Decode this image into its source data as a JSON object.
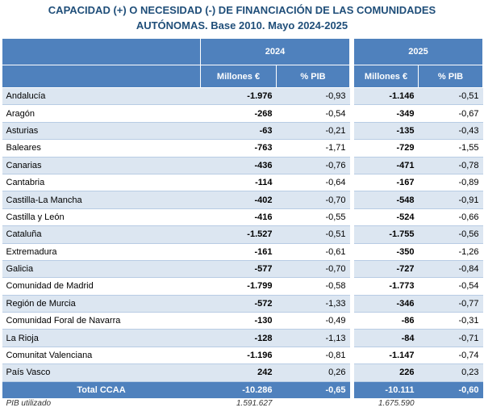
{
  "header": {
    "title_line1": "CAPACIDAD (+) O NECESIDAD (-) DE FINANCIACIÓN DE LAS COMUNIDADES",
    "title_line2": "AUTÓNOMAS. Base 2010. Mayo 2024-2025"
  },
  "table": {
    "years": [
      "2024",
      "2025"
    ],
    "columns": [
      "Millones €",
      "% PIB",
      "Millones €",
      "% PIB"
    ],
    "rows": [
      [
        "Andalucía",
        "-1.976",
        "-0,93",
        "-1.146",
        "-0,51"
      ],
      [
        "Aragón",
        "-268",
        "-0,54",
        "-349",
        "-0,67"
      ],
      [
        "Asturias",
        "-63",
        "-0,21",
        "-135",
        "-0,43"
      ],
      [
        "Baleares",
        "-763",
        "-1,71",
        "-729",
        "-1,55"
      ],
      [
        "Canarias",
        "-436",
        "-0,76",
        "-471",
        "-0,78"
      ],
      [
        "Cantabria",
        "-114",
        "-0,64",
        "-167",
        "-0,89"
      ],
      [
        "Castilla-La Mancha",
        "-402",
        "-0,70",
        "-548",
        "-0,91"
      ],
      [
        "Castilla y León",
        "-416",
        "-0,55",
        "-524",
        "-0,66"
      ],
      [
        "Cataluña",
        "-1.527",
        "-0,51",
        "-1.755",
        "-0,56"
      ],
      [
        "Extremadura",
        "-161",
        "-0,61",
        "-350",
        "-1,26"
      ],
      [
        "Galicia",
        "-577",
        "-0,70",
        "-727",
        "-0,84"
      ],
      [
        "Comunidad de Madrid",
        "-1.799",
        "-0,58",
        "-1.773",
        "-0,54"
      ],
      [
        "Región de Murcia",
        "-572",
        "-1,33",
        "-346",
        "-0,77"
      ],
      [
        "Comunidad Foral de Navarra",
        "-130",
        "-0,49",
        "-86",
        "-0,31"
      ],
      [
        "La Rioja",
        "-128",
        "-1,13",
        "-84",
        "-0,71"
      ],
      [
        "Comunitat Valenciana",
        "-1.196",
        "-0,81",
        "-1.147",
        "-0,74"
      ],
      [
        "País Vasco",
        "242",
        "0,26",
        "226",
        "0,23"
      ]
    ],
    "total": [
      "Total CCAA",
      "-10.286",
      "-0,65",
      "-10.111",
      "-0,60"
    ],
    "footer": [
      "PIB utilizado",
      "1.591.627",
      "1.675.590"
    ]
  }
}
